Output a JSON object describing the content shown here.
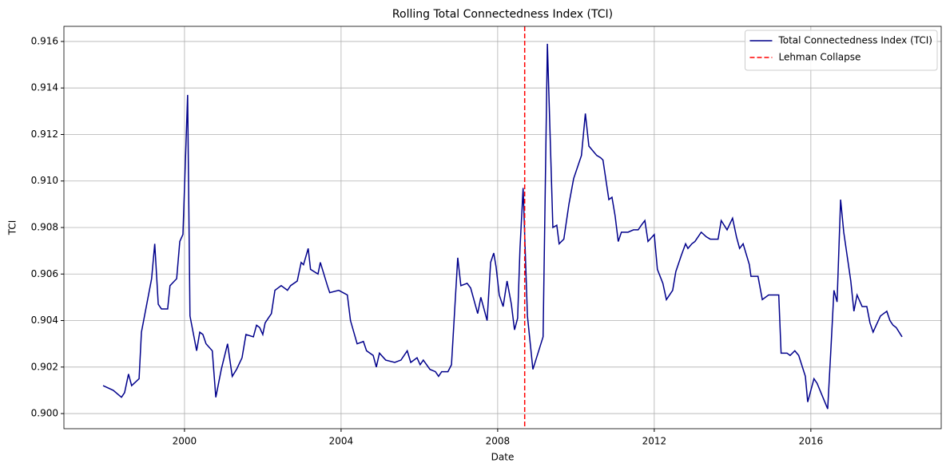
{
  "chart_data": {
    "type": "line",
    "title": "Rolling Total Connectedness Index (TCI)",
    "x_label": "Date",
    "y_label": "TCI",
    "x": [
      1997.92,
      1998.18,
      1998.39,
      1998.47,
      1998.57,
      1998.65,
      1998.84,
      1998.9,
      1999.16,
      1999.24,
      1999.33,
      1999.41,
      1999.57,
      1999.63,
      1999.8,
      1999.88,
      1999.96,
      2000.08,
      2000.14,
      2000.31,
      2000.39,
      2000.47,
      2000.55,
      2000.71,
      2000.8,
      2000.94,
      2001.1,
      2001.22,
      2001.33,
      2001.47,
      2001.57,
      2001.76,
      2001.84,
      2001.92,
      2002.0,
      2002.06,
      2002.22,
      2002.31,
      2002.47,
      2002.63,
      2002.71,
      2002.88,
      2002.98,
      2003.04,
      2003.16,
      2003.22,
      2003.41,
      2003.47,
      2003.65,
      2003.71,
      2003.94,
      2004.16,
      2004.24,
      2004.41,
      2004.57,
      2004.65,
      2004.82,
      2004.9,
      2004.98,
      2005.14,
      2005.37,
      2005.53,
      2005.69,
      2005.78,
      2005.94,
      2006.02,
      2006.1,
      2006.27,
      2006.41,
      2006.49,
      2006.57,
      2006.73,
      2006.82,
      2006.98,
      2007.06,
      2007.22,
      2007.31,
      2007.49,
      2007.57,
      2007.73,
      2007.82,
      2007.9,
      2007.96,
      2008.04,
      2008.14,
      2008.24,
      2008.35,
      2008.43,
      2008.51,
      2008.57,
      2008.65,
      2008.76,
      2008.9,
      2009.16,
      2009.27,
      2009.41,
      2009.51,
      2009.57,
      2009.69,
      2009.82,
      2009.94,
      2010.14,
      2010.24,
      2010.33,
      2010.53,
      2010.63,
      2010.69,
      2010.84,
      2010.92,
      2011.0,
      2011.08,
      2011.16,
      2011.33,
      2011.47,
      2011.59,
      2011.67,
      2011.76,
      2011.84,
      2012.0,
      2012.08,
      2012.22,
      2012.31,
      2012.47,
      2012.55,
      2012.69,
      2012.8,
      2012.86,
      2012.96,
      2013.04,
      2013.2,
      2013.33,
      2013.43,
      2013.63,
      2013.71,
      2013.86,
      2014.0,
      2014.1,
      2014.18,
      2014.27,
      2014.43,
      2014.47,
      2014.65,
      2014.76,
      2014.92,
      2015.18,
      2015.24,
      2015.39,
      2015.47,
      2015.59,
      2015.69,
      2015.86,
      2015.92,
      2016.08,
      2016.16,
      2016.43,
      2016.51,
      2016.59,
      2016.67,
      2016.76,
      2016.84,
      2017.02,
      2017.1,
      2017.18,
      2017.31,
      2017.43,
      2017.51,
      2017.59,
      2017.67,
      2017.78,
      2017.86,
      2017.94,
      2018.02,
      2018.1,
      2018.18,
      2018.33
    ],
    "series": [
      {
        "name": "Total Connectedness Index (TCI)",
        "color": "#00008b",
        "values": [
          0.9012,
          0.901,
          0.9007,
          0.9009,
          0.9017,
          0.9012,
          0.9015,
          0.9035,
          0.9058,
          0.9073,
          0.9047,
          0.9045,
          0.9045,
          0.9055,
          0.9058,
          0.9074,
          0.9077,
          0.9137,
          0.9042,
          0.9027,
          0.9035,
          0.9034,
          0.903,
          0.9027,
          0.9007,
          0.9019,
          0.903,
          0.9016,
          0.9019,
          0.9024,
          0.9034,
          0.9033,
          0.9038,
          0.9037,
          0.9034,
          0.9039,
          0.9043,
          0.9053,
          0.9055,
          0.9053,
          0.9055,
          0.9057,
          0.9065,
          0.9064,
          0.9071,
          0.9062,
          0.906,
          0.9065,
          0.9055,
          0.9052,
          0.9053,
          0.9051,
          0.904,
          0.903,
          0.9031,
          0.9027,
          0.9025,
          0.902,
          0.9026,
          0.9023,
          0.9022,
          0.9023,
          0.9027,
          0.9022,
          0.9024,
          0.9021,
          0.9023,
          0.9019,
          0.9018,
          0.9016,
          0.9018,
          0.9018,
          0.9021,
          0.9067,
          0.9055,
          0.9056,
          0.9054,
          0.9043,
          0.905,
          0.904,
          0.9065,
          0.9069,
          0.9063,
          0.9051,
          0.9046,
          0.9057,
          0.9047,
          0.9036,
          0.9041,
          0.9071,
          0.9097,
          0.9042,
          0.9019,
          0.9033,
          0.9159,
          0.908,
          0.9081,
          0.9073,
          0.9075,
          0.909,
          0.9101,
          0.9111,
          0.9129,
          0.9115,
          0.9111,
          0.911,
          0.9109,
          0.9092,
          0.9093,
          0.9085,
          0.9074,
          0.9078,
          0.9078,
          0.9079,
          0.9079,
          0.9081,
          0.9083,
          0.9074,
          0.9077,
          0.9062,
          0.9056,
          0.9049,
          0.9053,
          0.9061,
          0.9068,
          0.9073,
          0.9071,
          0.9073,
          0.9074,
          0.9078,
          0.9076,
          0.9075,
          0.9075,
          0.9083,
          0.9079,
          0.9084,
          0.9076,
          0.9071,
          0.9073,
          0.9064,
          0.9059,
          0.9059,
          0.9049,
          0.9051,
          0.9051,
          0.9026,
          0.9026,
          0.9025,
          0.9027,
          0.9025,
          0.9016,
          0.9005,
          0.9015,
          0.9013,
          0.9002,
          0.9027,
          0.9053,
          0.9048,
          0.9092,
          0.9078,
          0.9057,
          0.9044,
          0.9051,
          0.9046,
          0.9046,
          0.9039,
          0.9035,
          0.9038,
          0.9042,
          0.9043,
          0.9044,
          0.904,
          0.9038,
          0.9037,
          0.9033
        ]
      }
    ],
    "vlines": [
      {
        "name": "Lehman Collapse",
        "x": 2008.69,
        "color": "#ff0000",
        "dashed": true
      }
    ],
    "xlim": [
      1996.92,
      2019.33
    ],
    "xticks": [
      2000,
      2004,
      2008,
      2012,
      2016
    ],
    "ylim": [
      0.89935,
      0.91665
    ],
    "yticks": [
      {
        "value": 0.9,
        "label": "0.900"
      },
      {
        "value": 0.902,
        "label": "0.902"
      },
      {
        "value": 0.904,
        "label": "0.904"
      },
      {
        "value": 0.906,
        "label": "0.906"
      },
      {
        "value": 0.908,
        "label": "0.908"
      },
      {
        "value": 0.91,
        "label": "0.910"
      },
      {
        "value": 0.912,
        "label": "0.912"
      },
      {
        "value": 0.914,
        "label": "0.914"
      },
      {
        "value": 0.916,
        "label": "0.916"
      }
    ],
    "grid": true,
    "legend": "upper right"
  }
}
